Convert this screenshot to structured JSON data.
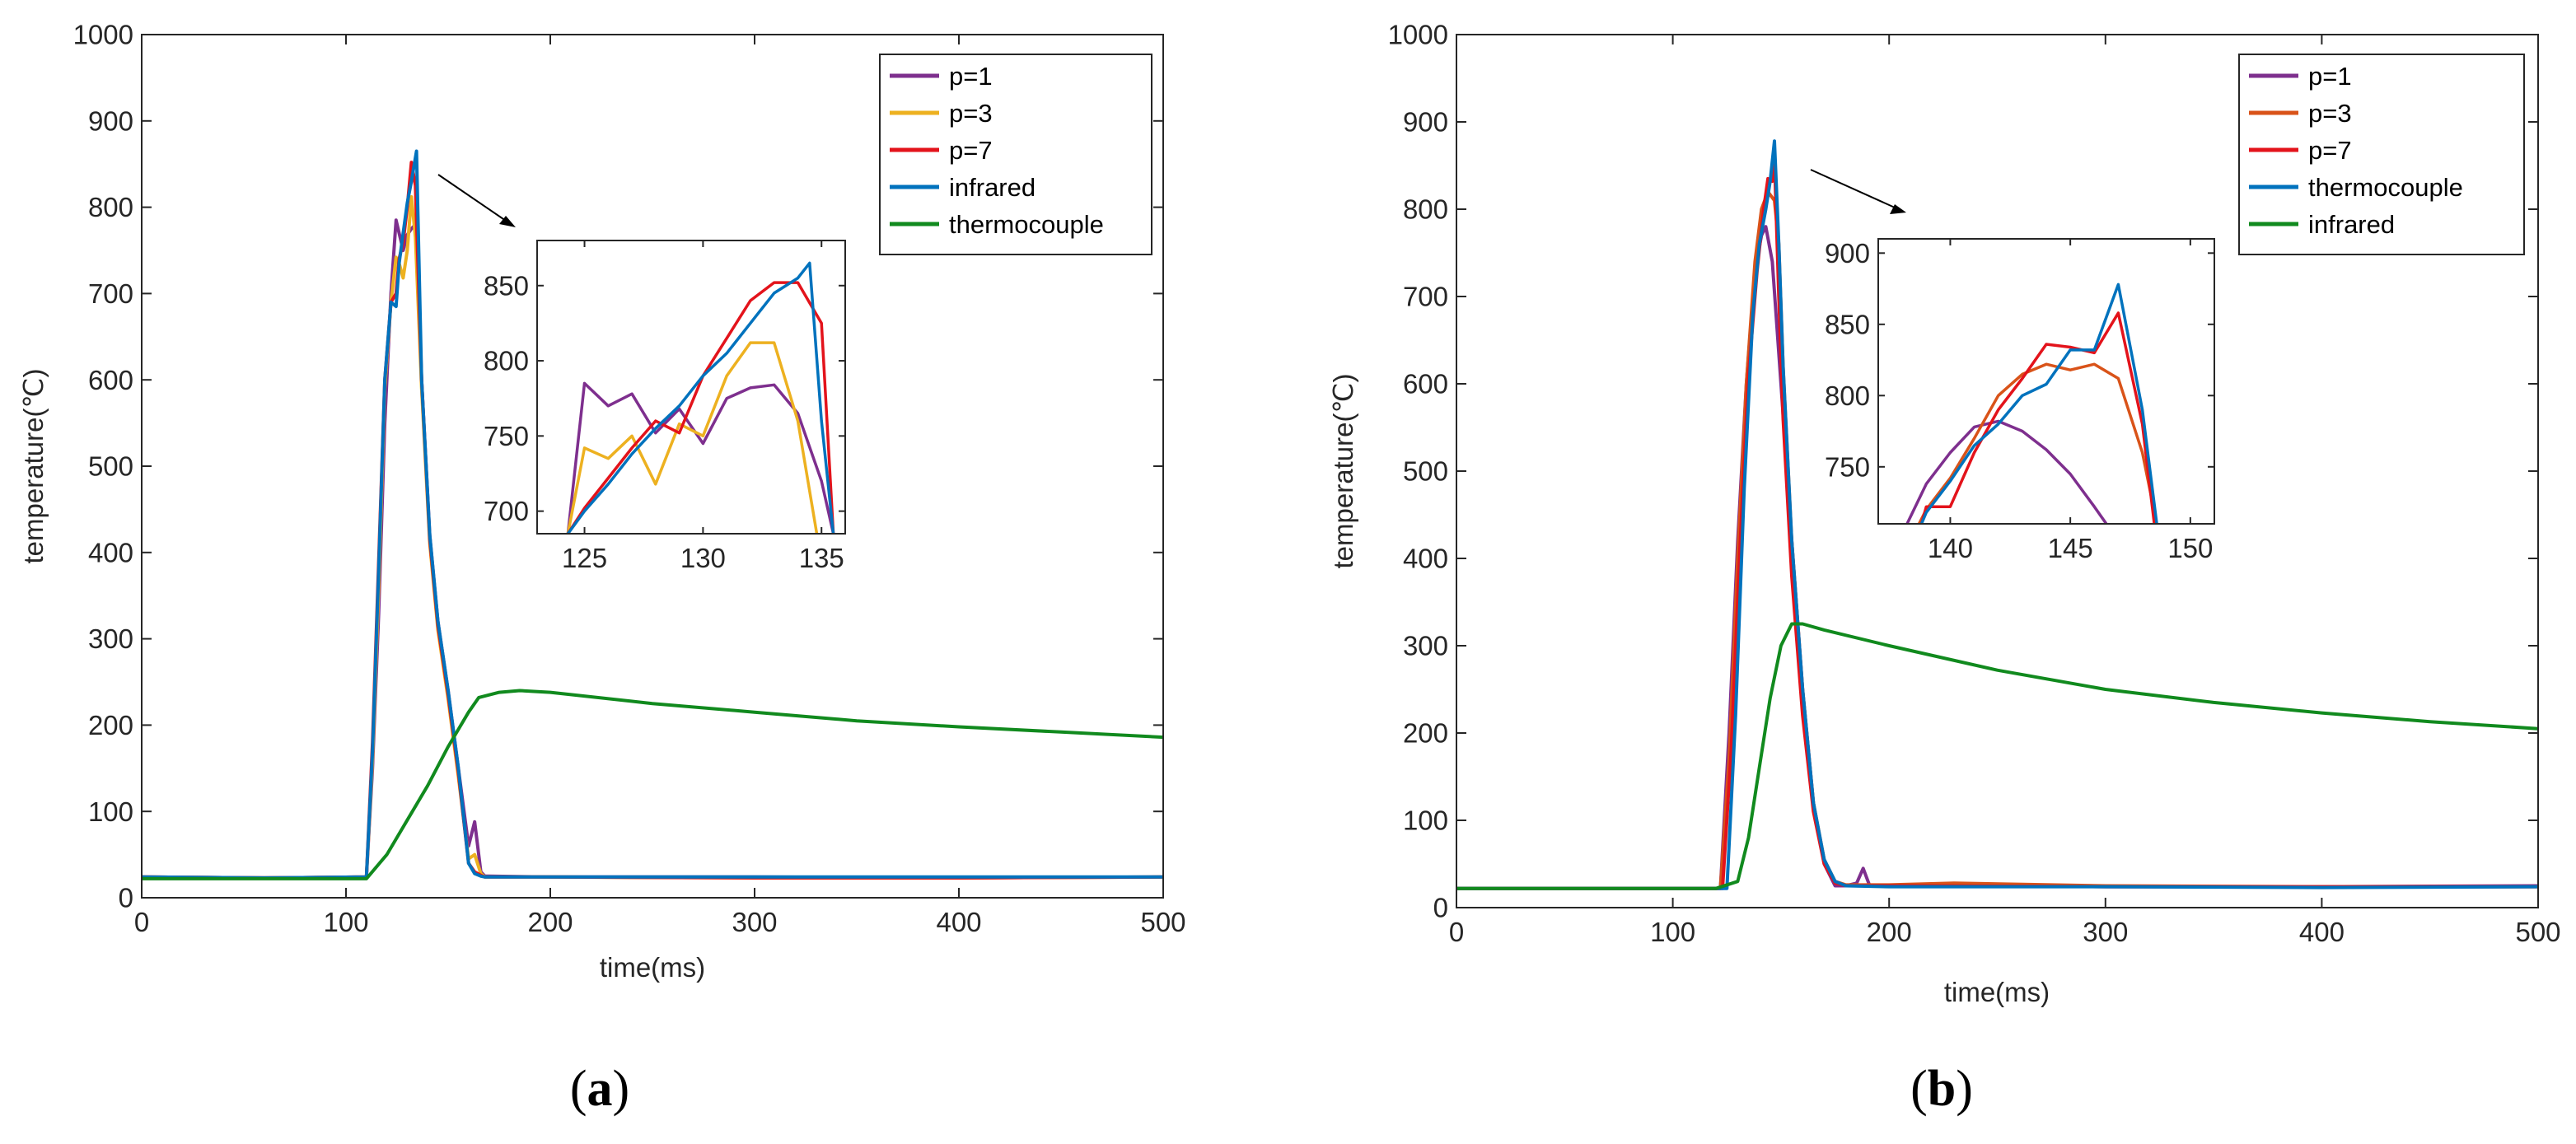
{
  "panel_labels": [
    "(a)",
    "(b)"
  ],
  "colors": {
    "purple": "#7E2F8E",
    "gold": "#EDB120",
    "orange": "#D95319",
    "red": "#E3131B",
    "blue": "#0072BD",
    "green": "#118A1E",
    "axis": "#262626"
  },
  "chart_data": [
    {
      "type": "line",
      "panel": "(a)",
      "xlabel": "time(ms)",
      "ylabel": "temperature(℃)",
      "xlim": [
        0,
        500
      ],
      "ylim": [
        0,
        1000
      ],
      "xticks": [
        0,
        100,
        200,
        300,
        400,
        500
      ],
      "yticks": [
        0,
        100,
        200,
        300,
        400,
        500,
        600,
        700,
        800,
        900,
        1000
      ],
      "legend_position": "top-right",
      "series": [
        {
          "name": "p=1",
          "color": "purple",
          "x": [
            0,
            60,
            110,
            113,
            116,
            119,
            122,
            124.5,
            126,
            128,
            130,
            132,
            134,
            137,
            141,
            145,
            150,
            155,
            160,
            163,
            166,
            168,
            170,
            200,
            300,
            400,
            500
          ],
          "y": [
            24,
            23,
            24,
            150,
            330,
            550,
            700,
            785,
            770,
            750,
            768,
            775,
            780,
            600,
            420,
            320,
            240,
            150,
            60,
            88,
            30,
            25,
            25,
            24,
            24,
            23,
            24
          ]
        },
        {
          "name": "p=3",
          "color": "gold",
          "x": [
            0,
            60,
            110,
            113,
            116,
            119,
            122,
            124.5,
            126,
            128,
            130,
            132,
            134,
            137,
            141,
            145,
            150,
            155,
            160,
            163,
            166,
            168,
            170,
            200,
            300,
            400,
            500
          ],
          "y": [
            24,
            23,
            24,
            160,
            360,
            590,
            690,
            742,
            735,
            718,
            750,
            812,
            765,
            590,
            410,
            310,
            230,
            140,
            45,
            50,
            28,
            24,
            24,
            24,
            23,
            23,
            24
          ]
        },
        {
          "name": "p=7",
          "color": "red",
          "x": [
            0,
            60,
            110,
            113,
            116,
            119,
            122,
            124.5,
            126,
            128,
            130,
            132,
            134,
            137,
            141,
            145,
            150,
            155,
            160,
            163,
            166,
            168,
            170,
            200,
            300,
            400,
            500
          ],
          "y": [
            24,
            23,
            24,
            180,
            390,
            600,
            690,
            700,
            740,
            760,
            800,
            852,
            825,
            600,
            415,
            315,
            235,
            145,
            40,
            30,
            26,
            24,
            24,
            24,
            23,
            23,
            24
          ]
        },
        {
          "name": "infrared",
          "color": "blue",
          "x": [
            0,
            60,
            110,
            113,
            116,
            119,
            122,
            124.5,
            126,
            128,
            130,
            132,
            134.5,
            137,
            141,
            145,
            150,
            155,
            160,
            163,
            166,
            168,
            170,
            200,
            300,
            400,
            500
          ],
          "y": [
            24,
            23,
            24,
            170,
            380,
            600,
            690,
            685,
            735,
            770,
            805,
            830,
            865,
            600,
            420,
            320,
            240,
            150,
            40,
            28,
            25,
            24,
            24,
            24,
            24,
            24,
            24
          ]
        },
        {
          "name": "thermocouple",
          "color": "green",
          "x": [
            0,
            60,
            110,
            120,
            130,
            140,
            150,
            160,
            165,
            175,
            185,
            200,
            250,
            300,
            350,
            400,
            450,
            500
          ],
          "y": [
            22,
            22,
            22,
            50,
            90,
            130,
            175,
            215,
            232,
            238,
            240,
            238,
            225,
            215,
            205,
            198,
            192,
            186
          ]
        }
      ],
      "inset": {
        "xlim": [
          123,
          136
        ],
        "ylim": [
          685,
          880
        ],
        "xticks": [
          125,
          130,
          135
        ],
        "yticks": [
          700,
          750,
          800,
          850
        ],
        "series": [
          {
            "name": "p=1",
            "color": "purple",
            "x": [
              124.3,
              125,
              126,
              127,
              128,
              129,
              130,
              131,
              132,
              133,
              134,
              135,
              135.5
            ],
            "y": [
              685,
              785,
              770,
              778,
              752,
              768,
              745,
              775,
              782,
              784,
              765,
              720,
              685
            ]
          },
          {
            "name": "p=3",
            "color": "gold",
            "x": [
              124.3,
              125,
              126,
              127,
              128,
              129,
              130,
              131,
              132,
              133,
              134,
              134.8
            ],
            "y": [
              685,
              742,
              735,
              750,
              718,
              758,
              750,
              790,
              812,
              812,
              760,
              685
            ]
          },
          {
            "name": "p=7",
            "color": "red",
            "x": [
              124.3,
              125,
              126,
              127,
              128,
              129,
              130,
              131,
              132,
              133,
              134,
              135,
              135.5
            ],
            "y": [
              685,
              702,
              722,
              742,
              760,
              752,
              790,
              815,
              840,
              852,
              852,
              825,
              685
            ]
          },
          {
            "name": "infrared",
            "color": "blue",
            "x": [
              124.3,
              125,
              126,
              127,
              128,
              129,
              130,
              131,
              132,
              133,
              134,
              134.5,
              135,
              135.5
            ],
            "y": [
              685,
              700,
              718,
              738,
              755,
              770,
              790,
              805,
              825,
              845,
              855,
              865,
              760,
              685
            ]
          }
        ]
      }
    },
    {
      "type": "line",
      "panel": "(b)",
      "xlabel": "time(ms)",
      "ylabel": "temperature(℃)",
      "xlim": [
        0,
        500
      ],
      "ylim": [
        0,
        1000
      ],
      "xticks": [
        0,
        100,
        200,
        300,
        400,
        500
      ],
      "yticks": [
        0,
        100,
        200,
        300,
        400,
        500,
        600,
        700,
        800,
        900,
        1000
      ],
      "legend_position": "top-right",
      "series": [
        {
          "name": "p=1",
          "color": "purple",
          "x": [
            0,
            60,
            122,
            126,
            130,
            134,
            138,
            141,
            143,
            146,
            150,
            155,
            160,
            165,
            170,
            175,
            180,
            185,
            188,
            191,
            194,
            200,
            300,
            400,
            500
          ],
          "y": [
            22,
            22,
            22,
            200,
            420,
            600,
            730,
            770,
            780,
            740,
            600,
            420,
            250,
            120,
            50,
            25,
            25,
            28,
            45,
            25,
            25,
            25,
            24,
            24,
            25
          ]
        },
        {
          "name": "p=3",
          "color": "orange",
          "x": [
            0,
            60,
            122,
            126,
            130,
            134,
            138,
            141,
            144,
            147,
            149,
            151,
            155,
            160,
            165,
            170,
            175,
            180,
            200,
            230,
            300,
            400,
            500
          ],
          "y": [
            22,
            22,
            22,
            170,
            400,
            600,
            740,
            800,
            820,
            810,
            760,
            620,
            420,
            250,
            120,
            55,
            30,
            26,
            26,
            28,
            25,
            24,
            24
          ]
        },
        {
          "name": "p=7",
          "color": "red",
          "x": [
            0,
            60,
            123,
            127,
            131,
            135,
            139,
            142,
            144,
            146,
            147,
            149,
            151,
            155,
            160,
            165,
            170,
            175,
            180,
            200,
            300,
            400,
            500
          ],
          "y": [
            22,
            22,
            22,
            180,
            410,
            610,
            730,
            800,
            835,
            832,
            858,
            700,
            560,
            380,
            220,
            110,
            50,
            28,
            25,
            25,
            24,
            24,
            24
          ]
        },
        {
          "name": "thermocouple",
          "color": "blue",
          "x": [
            0,
            60,
            125,
            129,
            133,
            137,
            140,
            143,
            145,
            147,
            149,
            151,
            155,
            160,
            165,
            170,
            175,
            180,
            200,
            300,
            400,
            500
          ],
          "y": [
            22,
            22,
            22,
            220,
            480,
            680,
            760,
            800,
            832,
            878,
            760,
            620,
            420,
            250,
            120,
            55,
            30,
            25,
            24,
            24,
            23,
            24
          ]
        },
        {
          "name": "infrared",
          "color": "green",
          "x": [
            0,
            60,
            120,
            130,
            135,
            140,
            145,
            150,
            155,
            160,
            170,
            200,
            250,
            300,
            350,
            400,
            450,
            500
          ],
          "y": [
            22,
            22,
            22,
            30,
            80,
            160,
            240,
            300,
            325,
            325,
            318,
            300,
            272,
            250,
            235,
            223,
            213,
            205
          ]
        }
      ],
      "inset": {
        "xlim": [
          137,
          151
        ],
        "ylim": [
          710,
          910
        ],
        "xticks": [
          140,
          145,
          150
        ],
        "yticks": [
          750,
          800,
          850,
          900
        ],
        "series": [
          {
            "name": "p=1",
            "color": "purple",
            "x": [
              138.2,
              139,
              140,
              141,
              142,
              143,
              144,
              145,
              146,
              146.5
            ],
            "y": [
              710,
              738,
              760,
              778,
              782,
              775,
              762,
              745,
              722,
              710
            ]
          },
          {
            "name": "p=3",
            "color": "orange",
            "x": [
              138.7,
              139,
              140,
              141,
              142,
              143,
              144,
              145,
              146,
              147,
              148,
              148.6
            ],
            "y": [
              710,
              720,
              742,
              770,
              800,
              815,
              822,
              818,
              822,
              812,
              760,
              710
            ]
          },
          {
            "name": "p=7",
            "color": "red",
            "x": [
              138.8,
              139,
              140,
              141,
              142,
              143,
              144,
              145,
              146,
              147,
              148,
              148.5
            ],
            "y": [
              710,
              722,
              722,
              760,
              790,
              812,
              836,
              834,
              830,
              858,
              780,
              710
            ]
          },
          {
            "name": "thermocouple",
            "color": "blue",
            "x": [
              138.8,
              139,
              140,
              141,
              142,
              143,
              144,
              145,
              146,
              147,
              148,
              148.6
            ],
            "y": [
              710,
              718,
              740,
              765,
              780,
              800,
              808,
              832,
              832,
              878,
              790,
              710
            ]
          }
        ]
      }
    }
  ]
}
